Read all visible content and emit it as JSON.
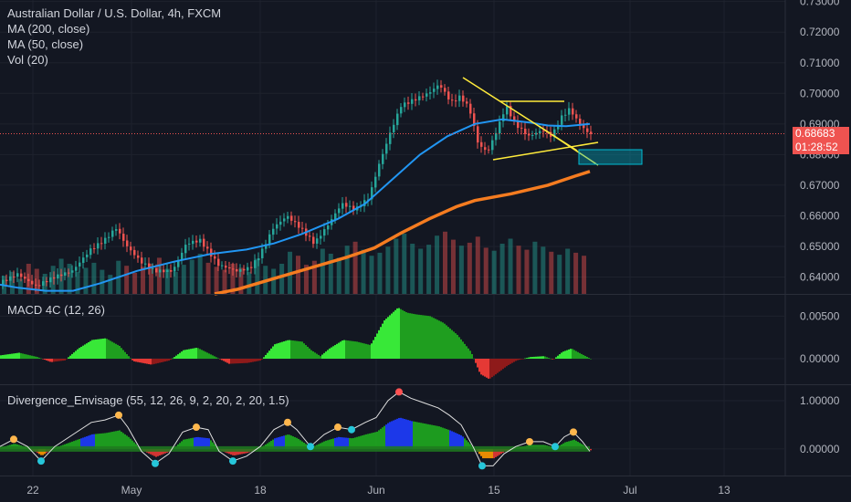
{
  "legend": {
    "symbol": "Australian Dollar / U.S. Dollar, 4h, FXCM",
    "ma200": "MA (200, close)",
    "ma50": "MA (50, close)",
    "vol": "Vol (20)"
  },
  "macd_label": "MACD 4C (12, 26)",
  "div_label": "Divergence_Envisage (55, 12, 26, 9, 2, 20, 2, 20, 1.5)",
  "current_price": "0.68683",
  "countdown": "01:28:52",
  "colors": {
    "background": "#131722",
    "up": "#26a69a",
    "down": "#ef5350",
    "ma50": "#2196f3",
    "ma200": "#f57c20",
    "pattern": "#ffeb3b",
    "box": "#00bcd4",
    "macd_up": "#2ecc40",
    "macd_down": "#d32f2f",
    "price_line": "#ef5350"
  },
  "chart_data": [
    {
      "type": "candlestick",
      "title": "Australian Dollar / U.S. Dollar, 4h, FXCM",
      "x_ticks": [
        "22",
        "May",
        "18",
        "Jun",
        "15",
        "Jul",
        "13"
      ],
      "y_ticks": [
        "0.73000",
        "0.72000",
        "0.71000",
        "0.70000",
        "0.69000",
        "0.68000",
        "0.67000",
        "0.66000",
        "0.65000",
        "0.64000"
      ],
      "ylim": [
        0.6345,
        0.7305
      ],
      "series": [
        {
          "name": "MA (50, close)",
          "points": [
            [
              0,
              0.6375
            ],
            [
              20,
              0.6365
            ],
            [
              50,
              0.6355
            ],
            [
              80,
              0.6355
            ],
            [
              110,
              0.638
            ],
            [
              150,
              0.642
            ],
            [
              190,
              0.645
            ],
            [
              230,
              0.6475
            ],
            [
              270,
              0.649
            ],
            [
              300,
              0.651
            ],
            [
              330,
              0.654
            ],
            [
              370,
              0.659
            ],
            [
              400,
              0.664
            ],
            [
              430,
              0.672
            ],
            [
              460,
              0.68
            ],
            [
              490,
              0.686
            ],
            [
              520,
              0.69
            ],
            [
              550,
              0.6915
            ],
            [
              580,
              0.6905
            ],
            [
              600,
              0.6895
            ],
            [
              620,
              0.6893
            ],
            [
              646,
              0.69
            ]
          ]
        },
        {
          "name": "MA (200, close)",
          "points": [
            [
              235,
              0.6345
            ],
            [
              260,
              0.636
            ],
            [
              300,
              0.6395
            ],
            [
              340,
              0.643
            ],
            [
              380,
              0.6465
            ],
            [
              410,
              0.6495
            ],
            [
              440,
              0.6545
            ],
            [
              470,
              0.659
            ],
            [
              500,
              0.663
            ],
            [
              520,
              0.665
            ],
            [
              560,
              0.6672
            ],
            [
              600,
              0.67
            ],
            [
              630,
              0.673
            ],
            [
              646,
              0.6745
            ]
          ]
        },
        {
          "name": "Close",
          "points": [
            [
              0,
              0.638
            ],
            [
              20,
              0.641
            ],
            [
              40,
              0.637
            ],
            [
              60,
              0.64
            ],
            [
              80,
              0.642
            ],
            [
              100,
              0.649
            ],
            [
              115,
              0.652
            ],
            [
              128,
              0.656
            ],
            [
              140,
              0.65
            ],
            [
              155,
              0.645
            ],
            [
              170,
              0.642
            ],
            [
              190,
              0.642
            ],
            [
              205,
              0.651
            ],
            [
              220,
              0.652
            ],
            [
              240,
              0.644
            ],
            [
              260,
              0.642
            ],
            [
              275,
              0.643
            ],
            [
              285,
              0.647
            ],
            [
              300,
              0.656
            ],
            [
              315,
              0.66
            ],
            [
              330,
              0.656
            ],
            [
              345,
              0.651
            ],
            [
              360,
              0.657
            ],
            [
              375,
              0.664
            ],
            [
              390,
              0.662
            ],
            [
              405,
              0.666
            ],
            [
              415,
              0.676
            ],
            [
              428,
              0.687
            ],
            [
              440,
              0.696
            ],
            [
              455,
              0.698
            ],
            [
              470,
              0.7
            ],
            [
              482,
              0.703
            ],
            [
              495,
              0.697
            ],
            [
              505,
              0.699
            ],
            [
              515,
              0.695
            ],
            [
              525,
              0.683
            ],
            [
              535,
              0.681
            ],
            [
              545,
              0.688
            ],
            [
              555,
              0.696
            ],
            [
              565,
              0.69
            ],
            [
              580,
              0.686
            ],
            [
              595,
              0.688
            ],
            [
              605,
              0.686
            ],
            [
              615,
              0.692
            ],
            [
              625,
              0.695
            ],
            [
              635,
              0.69
            ],
            [
              646,
              0.6868
            ]
          ]
        }
      ],
      "volume": [
        18,
        22,
        15,
        30,
        25,
        20,
        28,
        35,
        30,
        22,
        26,
        31,
        24,
        19,
        33,
        28,
        21,
        27,
        30,
        36,
        25,
        22,
        29,
        34,
        40,
        31,
        27,
        24,
        30,
        26,
        22,
        35,
        28,
        25,
        30,
        42,
        38,
        29,
        33,
        45,
        40,
        36,
        48,
        52,
        44,
        38,
        41,
        47,
        55,
        60,
        50,
        45,
        49,
        58,
        62,
        54,
        48,
        51,
        57,
        46,
        43,
        50,
        55,
        48,
        44,
        52,
        47,
        42,
        39,
        45,
        41,
        38
      ]
    },
    {
      "type": "bar",
      "title": "MACD 4C (12, 26)",
      "y_ticks": [
        "0.00500",
        "0.00000"
      ],
      "ylim": [
        -0.003,
        0.0075
      ],
      "points": [
        [
          0,
          0.0004
        ],
        [
          20,
          0.0007
        ],
        [
          40,
          0.0002
        ],
        [
          55,
          -0.0004
        ],
        [
          70,
          -0.0002
        ],
        [
          85,
          0.0012
        ],
        [
          100,
          0.0022
        ],
        [
          115,
          0.0024
        ],
        [
          130,
          0.0015
        ],
        [
          145,
          -0.0003
        ],
        [
          165,
          -0.0007
        ],
        [
          185,
          -0.0002
        ],
        [
          200,
          0.001
        ],
        [
          215,
          0.0013
        ],
        [
          230,
          0.0005
        ],
        [
          250,
          -0.0006
        ],
        [
          270,
          -0.0005
        ],
        [
          285,
          -0.0002
        ],
        [
          300,
          0.0017
        ],
        [
          315,
          0.0022
        ],
        [
          330,
          0.002
        ],
        [
          340,
          0.001
        ],
        [
          350,
          0.0003
        ],
        [
          360,
          0.0012
        ],
        [
          375,
          0.0022
        ],
        [
          390,
          0.002
        ],
        [
          405,
          0.0016
        ],
        [
          420,
          0.0045
        ],
        [
          435,
          0.006
        ],
        [
          445,
          0.0054
        ],
        [
          455,
          0.0052
        ],
        [
          470,
          0.005
        ],
        [
          485,
          0.0042
        ],
        [
          500,
          0.0028
        ],
        [
          515,
          0.0008
        ],
        [
          525,
          -0.0018
        ],
        [
          535,
          -0.0024
        ],
        [
          545,
          -0.0016
        ],
        [
          555,
          -0.0008
        ],
        [
          565,
          -0.0002
        ],
        [
          580,
          0.0002
        ],
        [
          595,
          0.0003
        ],
        [
          605,
          -0.0001
        ],
        [
          615,
          0.0008
        ],
        [
          625,
          0.0012
        ],
        [
          635,
          0.0006
        ],
        [
          646,
          0.0
        ]
      ]
    },
    {
      "type": "line",
      "title": "Divergence_Envisage (55, 12, 26, 9, 2, 20, 2, 20, 1.5)",
      "y_ticks": [
        "1.00000",
        "0.00000"
      ],
      "ylim": [
        -0.55,
        1.32
      ],
      "x_ticks": [
        "22",
        "May",
        "18",
        "Jun",
        "15",
        "Jul",
        "13"
      ],
      "points": [
        [
          0,
          0.05
        ],
        [
          15,
          0.2
        ],
        [
          30,
          0.05
        ],
        [
          45,
          -0.25
        ],
        [
          60,
          0.05
        ],
        [
          80,
          0.3
        ],
        [
          100,
          0.55
        ],
        [
          115,
          0.6
        ],
        [
          130,
          0.7
        ],
        [
          140,
          0.45
        ],
        [
          155,
          -0.05
        ],
        [
          170,
          -0.3
        ],
        [
          185,
          -0.1
        ],
        [
          200,
          0.35
        ],
        [
          215,
          0.45
        ],
        [
          228,
          0.4
        ],
        [
          240,
          -0.05
        ],
        [
          255,
          -0.25
        ],
        [
          270,
          -0.15
        ],
        [
          285,
          0.05
        ],
        [
          300,
          0.4
        ],
        [
          315,
          0.55
        ],
        [
          325,
          0.4
        ],
        [
          340,
          0.05
        ],
        [
          355,
          0.3
        ],
        [
          370,
          0.45
        ],
        [
          385,
          0.4
        ],
        [
          400,
          0.55
        ],
        [
          412,
          0.65
        ],
        [
          425,
          1.0
        ],
        [
          437,
          1.18
        ],
        [
          450,
          1.05
        ],
        [
          465,
          0.95
        ],
        [
          480,
          0.85
        ],
        [
          492,
          0.7
        ],
        [
          505,
          0.5
        ],
        [
          518,
          0.05
        ],
        [
          528,
          -0.35
        ],
        [
          540,
          -0.35
        ],
        [
          552,
          -0.1
        ],
        [
          565,
          0.05
        ],
        [
          580,
          0.15
        ],
        [
          595,
          0.15
        ],
        [
          608,
          0.05
        ],
        [
          618,
          0.25
        ],
        [
          628,
          0.35
        ],
        [
          638,
          0.15
        ],
        [
          646,
          -0.05
        ]
      ]
    }
  ]
}
